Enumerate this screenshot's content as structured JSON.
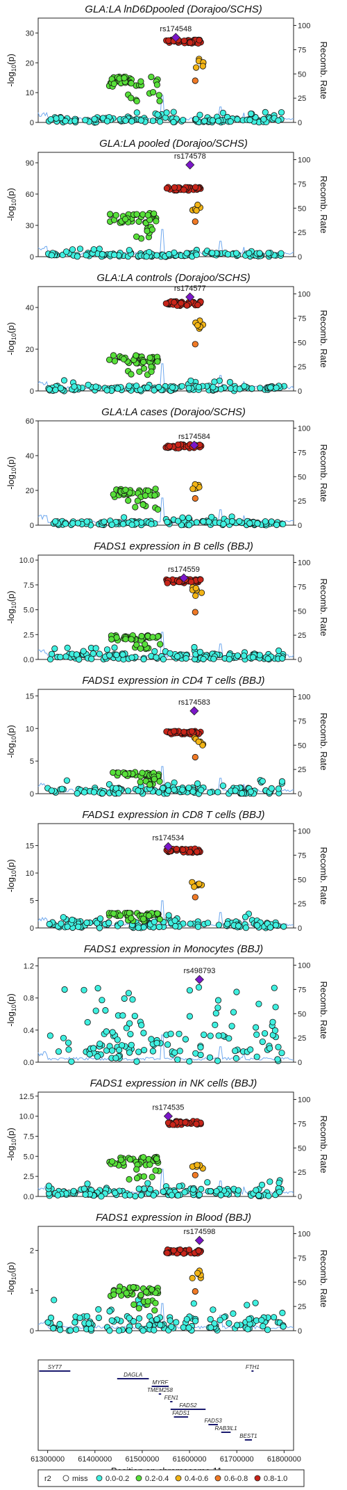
{
  "chart_data": {
    "type": "scatter",
    "xlabel": "Position on chromosome 11",
    "xlim": [
      61280000,
      61820000
    ],
    "x_ticks": [
      61300000,
      61400000,
      61500000,
      61600000,
      61700000,
      61800000
    ],
    "right_ylabel": "Recomb. Rate",
    "right_ylim": [
      0,
      100
    ],
    "right_ticks": [
      0,
      25,
      50,
      75,
      100
    ],
    "legend": {
      "title": "r2",
      "placement": "bottom",
      "entries": [
        {
          "label": "miss",
          "color": "#ffffff"
        },
        {
          "label": "0.0-0.2",
          "color": "#3ff0e0"
        },
        {
          "label": "0.2-0.4",
          "color": "#58e03a"
        },
        {
          "label": "0.4-0.6",
          "color": "#f2b416"
        },
        {
          "label": "0.6-0.8",
          "color": "#f07a26"
        },
        {
          "label": "0.8-1.0",
          "color": "#c8251a"
        }
      ]
    },
    "lead_color": "#7b16c9",
    "recomb_color": "#6fa8ee",
    "panels": [
      {
        "title": "GLA:LA lnD6Dpooled (Dorajoo/SCHS)",
        "ylabel": "-log10(p)",
        "ylim": [
          0,
          35
        ],
        "ticks": [
          0,
          10,
          20,
          30
        ],
        "lead": {
          "snp": "rs174548",
          "x": 61571000,
          "y": 28.5
        },
        "levels": {
          "low": 1.5,
          "green": 14.0,
          "red": 27.5,
          "orange": 20.0
        }
      },
      {
        "title": "GLA:LA pooled (Dorajoo/SCHS)",
        "ylabel": "-log10(p)",
        "ylim": [
          0,
          100
        ],
        "ticks": [
          0,
          30,
          60,
          90
        ],
        "lead": {
          "snp": "rs174578",
          "x": 61601000,
          "y": 88
        },
        "levels": {
          "low": 3.0,
          "green": 38.0,
          "red": 66.0,
          "orange": 48.0
        }
      },
      {
        "title": "GLA:LA controls (Dorajoo/SCHS)",
        "ylabel": "-log10(p)",
        "ylim": [
          0,
          50
        ],
        "ticks": [
          0,
          20,
          40
        ],
        "lead": {
          "snp": "rs174577",
          "x": 61601000,
          "y": 45
        },
        "levels": {
          "low": 2.0,
          "green": 15.5,
          "red": 42.5,
          "orange": 32.0
        }
      },
      {
        "title": "GLA:LA cases (Dorajoo/SCHS)",
        "ylabel": "-log10(p)",
        "ylim": [
          0,
          60
        ],
        "ticks": [
          0,
          20,
          40,
          60
        ],
        "lead": {
          "snp": "rs174584",
          "x": 61610000,
          "y": 46
        },
        "levels": {
          "low": 2.0,
          "green": 19.0,
          "red": 46.0,
          "orange": 22.0
        }
      },
      {
        "title": "FADS1 expression in B cells (BBJ)",
        "ylabel": "-log10(p)",
        "ylim": [
          0,
          10.5
        ],
        "ticks": [
          0.0,
          2.5,
          5.0,
          7.5,
          10.0
        ],
        "lead": {
          "snp": "rs174559",
          "x": 61588000,
          "y": 8.2
        },
        "levels": {
          "low": 0.5,
          "green": 2.2,
          "red": 8.0,
          "orange": 6.8
        }
      },
      {
        "title": "FADS1 expression in CD4 T cells (BBJ)",
        "ylabel": "-log10(p)",
        "ylim": [
          0,
          16
        ],
        "ticks": [
          0,
          5,
          10,
          15
        ],
        "lead": {
          "snp": "rs174583",
          "x": 61610000,
          "y": 12.7
        },
        "levels": {
          "low": 0.8,
          "green": 3.0,
          "red": 9.5,
          "orange": 8.0
        }
      },
      {
        "title": "FADS1 expression in CD8 T cells (BBJ)",
        "ylabel": "-log10(p)",
        "ylim": [
          0,
          19
        ],
        "ticks": [
          0,
          5,
          10,
          15
        ],
        "lead": {
          "snp": "rs174534",
          "x": 61555000,
          "y": 14.8
        },
        "levels": {
          "low": 1.0,
          "green": 2.5,
          "red": 14.3,
          "orange": 8.0
        }
      },
      {
        "title": "FADS1 expression in Monocytes (BBJ)",
        "ylabel": "-log10(p)",
        "ylim": [
          0,
          1.3
        ],
        "ticks": [
          0.0,
          0.4,
          0.8,
          1.2
        ],
        "lead": {
          "snp": "rs498793",
          "x": 61621000,
          "y": 1.03
        },
        "levels": {
          "low": 0.15,
          "green": 0.0,
          "red": 0.0,
          "orange": 0.0
        }
      },
      {
        "title": "FADS1 expression in NK cells (BBJ)",
        "ylabel": "-log10(p)",
        "ylim": [
          0,
          13
        ],
        "ticks": [
          0.0,
          2.5,
          5.0,
          7.5,
          10.0,
          12.5
        ],
        "lead": {
          "snp": "rs174535",
          "x": 61555000,
          "y": 10.0
        },
        "levels": {
          "low": 0.8,
          "green": 4.5,
          "red": 9.3,
          "orange": 3.8
        }
      },
      {
        "title": "FADS1 expression in Blood (BBJ)",
        "ylabel": "-log10(p)",
        "ylim": [
          0,
          2.6
        ],
        "ticks": [
          0,
          1,
          2
        ],
        "lead": {
          "snp": "rs174598",
          "x": 61621000,
          "y": 2.25
        },
        "levels": {
          "low": 0.3,
          "green": 1.0,
          "red": 2.0,
          "orange": 1.4
        }
      }
    ],
    "genes": [
      {
        "name": "SYT7",
        "start": 61282000,
        "end": 61348000,
        "row": 0,
        "label_dx": 0
      },
      {
        "name": "DAGLA",
        "start": 61447000,
        "end": 61514000,
        "row": 1,
        "label_dx": 0
      },
      {
        "name": "MYRF",
        "start": 61520000,
        "end": 61556000,
        "row": 2,
        "label_dx": 0
      },
      {
        "name": "TMEM258",
        "start": 61535000,
        "end": 61540000,
        "row": 3,
        "label_dx": 0
      },
      {
        "name": "FEN1",
        "start": 61559000,
        "end": 61564000,
        "row": 4,
        "label_dx": 0
      },
      {
        "name": "FADS2",
        "start": 61560000,
        "end": 61634000,
        "row": 5,
        "label_dx": 0
      },
      {
        "name": "FADS1",
        "start": 61567000,
        "end": 61597000,
        "row": 6,
        "label_dx": 0
      },
      {
        "name": "FADS3",
        "start": 61640000,
        "end": 61660000,
        "row": 7,
        "label_dx": 0
      },
      {
        "name": "RAB3IL1",
        "start": 61667000,
        "end": 61687000,
        "row": 8,
        "label_dx": 0
      },
      {
        "name": "BEST1",
        "start": 61717000,
        "end": 61732000,
        "row": 9,
        "label_dx": 0
      },
      {
        "name": "FTH1",
        "start": 61731000,
        "end": 61735000,
        "row": 0,
        "label_dx": 0
      }
    ]
  }
}
